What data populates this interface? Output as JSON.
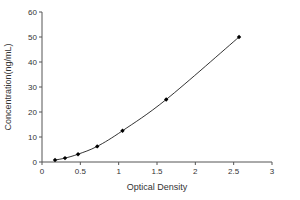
{
  "chart_data": {
    "type": "scatter",
    "x_label": "Optical Density",
    "y_label": "Concentration(ng/mL)",
    "x": [
      0.17,
      0.3,
      0.47,
      0.72,
      1.05,
      1.62,
      2.57
    ],
    "values": [
      0.78,
      1.56,
      3.12,
      6.25,
      12.5,
      25,
      50
    ],
    "color": "#000000",
    "marker": "diamond",
    "line_style": "solid",
    "xlim": [
      0,
      3
    ],
    "xticks": [
      0,
      0.5,
      1,
      1.5,
      2,
      2.5,
      3
    ],
    "ylim": [
      0,
      60
    ],
    "yticks": [
      0,
      10,
      20,
      30,
      40,
      50,
      60
    ],
    "grid": false
  }
}
